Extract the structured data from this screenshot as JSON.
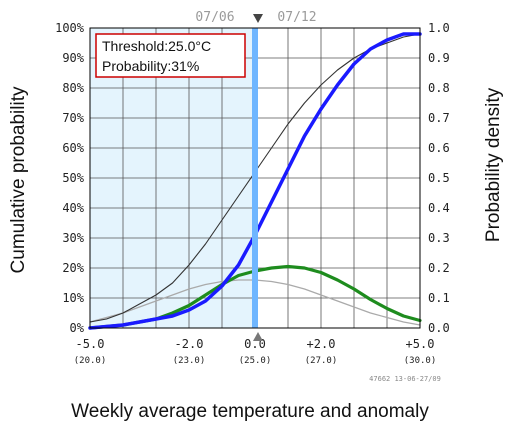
{
  "chart_data": {
    "type": "line",
    "xlabel": "Weekly average temperature and anomaly",
    "ylabel_left": "Cumulative probability",
    "ylabel_right": "Probability density",
    "xlim": [
      -5.0,
      5.0
    ],
    "ylim_left": [
      0,
      100
    ],
    "ylim_right": [
      0.0,
      1.0
    ],
    "x_ticks": [
      {
        "value": -5.0,
        "label": "-5.0",
        "sublabel": "(20.0)"
      },
      {
        "value": -2.0,
        "label": "-2.0",
        "sublabel": "(23.0)"
      },
      {
        "value": 0.0,
        "label": "0.0",
        "sublabel": "(25.0)"
      },
      {
        "value": 2.0,
        "label": "+2.0",
        "sublabel": "(27.0)"
      },
      {
        "value": 5.0,
        "label": "+5.0",
        "sublabel": "(30.0)"
      }
    ],
    "y_ticks_left": [
      "0%",
      "10%",
      "20%",
      "30%",
      "40%",
      "50%",
      "60%",
      "70%",
      "80%",
      "90%",
      "100%"
    ],
    "y_ticks_right": [
      "0.0",
      "0.1",
      "0.2",
      "0.3",
      "0.4",
      "0.5",
      "0.6",
      "0.7",
      "0.8",
      "0.9",
      "1.0"
    ],
    "grid": true,
    "threshold_x": 0.0,
    "dates": {
      "left": "07/06",
      "right": "07/12"
    },
    "stamp": "47662 13-06-27/09",
    "annotation": {
      "line1": "Threshold:25.0°C",
      "line2": "Probability:31%"
    },
    "colors": {
      "forecast_cdf": "#1a1aff",
      "climate_cdf": "#333333",
      "forecast_pdf": "#1e8c1e",
      "climate_pdf": "#aaaaaa",
      "threshold_line": "#6fb6ff",
      "shade": "#e4f4fd",
      "annotation_border": "#cc0000"
    },
    "series": [
      {
        "role": "forecast_cdf",
        "axis": "left",
        "x": [
          -5.0,
          -4.5,
          -4.0,
          -3.5,
          -3.0,
          -2.5,
          -2.0,
          -1.5,
          -1.0,
          -0.5,
          0.0,
          0.5,
          1.0,
          1.5,
          2.0,
          2.5,
          3.0,
          3.5,
          4.0,
          4.5,
          5.0
        ],
        "values": [
          0,
          0.5,
          1,
          2,
          3,
          4,
          6,
          9,
          14,
          21,
          31,
          42,
          53,
          64,
          73,
          81,
          88,
          93,
          96,
          98,
          98
        ]
      },
      {
        "role": "climate_cdf",
        "axis": "left",
        "x": [
          -5.0,
          -4.5,
          -4.0,
          -3.5,
          -3.0,
          -2.5,
          -2.0,
          -1.5,
          -1.0,
          -0.5,
          0.0,
          0.5,
          1.0,
          1.5,
          2.0,
          2.5,
          3.0,
          3.5,
          4.0,
          4.5,
          5.0
        ],
        "values": [
          2,
          3,
          5,
          8,
          11,
          15,
          21,
          28,
          36,
          44,
          52,
          60,
          68,
          75,
          81,
          86,
          90,
          93,
          95,
          97,
          98
        ]
      },
      {
        "role": "forecast_pdf",
        "axis": "right",
        "x": [
          -5.0,
          -4.5,
          -4.0,
          -3.5,
          -3.0,
          -2.5,
          -2.0,
          -1.5,
          -1.0,
          -0.5,
          0.0,
          0.5,
          1.0,
          1.5,
          2.0,
          2.5,
          3.0,
          3.5,
          4.0,
          4.5,
          5.0
        ],
        "values": [
          0.0,
          0.005,
          0.01,
          0.02,
          0.03,
          0.05,
          0.075,
          0.11,
          0.145,
          0.175,
          0.19,
          0.2,
          0.205,
          0.2,
          0.185,
          0.16,
          0.13,
          0.095,
          0.065,
          0.04,
          0.025
        ]
      },
      {
        "role": "climate_pdf",
        "axis": "right",
        "x": [
          -5.0,
          -4.5,
          -4.0,
          -3.5,
          -3.0,
          -2.5,
          -2.0,
          -1.5,
          -1.0,
          -0.5,
          0.0,
          0.5,
          1.0,
          1.5,
          2.0,
          2.5,
          3.0,
          3.5,
          4.0,
          4.5,
          5.0
        ],
        "values": [
          0.02,
          0.035,
          0.05,
          0.07,
          0.09,
          0.11,
          0.13,
          0.145,
          0.155,
          0.16,
          0.16,
          0.155,
          0.145,
          0.13,
          0.11,
          0.09,
          0.07,
          0.05,
          0.035,
          0.02,
          0.01
        ]
      }
    ]
  }
}
